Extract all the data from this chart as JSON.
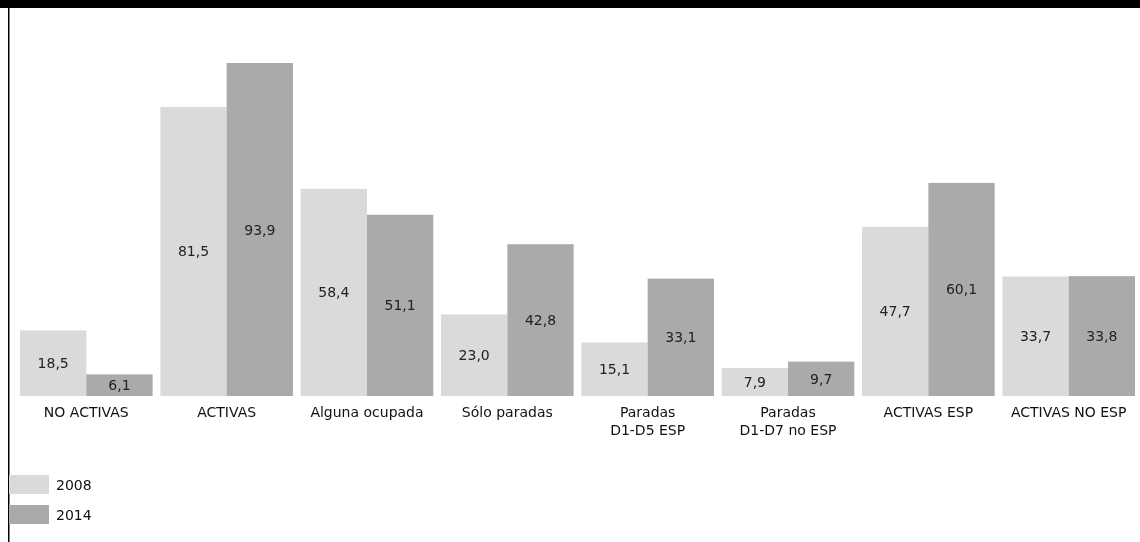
{
  "chart_data": {
    "type": "bar",
    "categories": [
      "NO ACTIVAS",
      "ACTIVAS",
      "Alguna ocupada",
      "Sólo paradas",
      "Paradas\nD1-D5 ESP",
      "Paradas\nD1-D7 no ESP",
      "ACTIVAS ESP",
      "ACTIVAS NO ESP"
    ],
    "series": [
      {
        "name": "2008",
        "color": "#dadada",
        "values": [
          18.5,
          81.5,
          58.4,
          23.0,
          15.1,
          7.9,
          47.7,
          33.7
        ],
        "value_labels": [
          "18,5",
          "81,5",
          "58,4",
          "23,0",
          "15,1",
          "7,9",
          "47,7",
          "33,7"
        ]
      },
      {
        "name": "2014",
        "color": "#aaaaaa",
        "values": [
          6.1,
          93.9,
          51.1,
          42.8,
          33.1,
          9.7,
          60.1,
          33.8
        ],
        "value_labels": [
          "6,1",
          "93,9",
          "51,1",
          "42,8",
          "33,1",
          "9,7",
          "60,1",
          "33,8"
        ]
      }
    ],
    "legend": "bottom left"
  }
}
